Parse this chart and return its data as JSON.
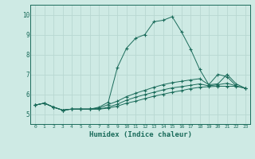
{
  "background_color": "#ceeae4",
  "grid_color": "#b8d8d2",
  "line_color": "#1a6b5a",
  "xlabel": "Humidex (Indice chaleur)",
  "x_ticks": [
    0,
    1,
    2,
    3,
    4,
    5,
    6,
    7,
    8,
    9,
    10,
    11,
    12,
    13,
    14,
    15,
    16,
    17,
    18,
    19,
    20,
    21,
    22,
    23
  ],
  "y_ticks": [
    5,
    6,
    7,
    8,
    9,
    10
  ],
  "xlim": [
    -0.5,
    23.5
  ],
  "ylim": [
    4.5,
    10.5
  ],
  "series": [
    [
      5.45,
      5.55,
      5.35,
      5.2,
      5.25,
      5.25,
      5.25,
      5.25,
      5.3,
      5.4,
      5.55,
      5.65,
      5.78,
      5.9,
      6.0,
      6.1,
      6.18,
      6.28,
      6.35,
      6.38,
      6.4,
      6.4,
      6.4,
      6.3
    ],
    [
      5.45,
      5.55,
      5.35,
      5.2,
      5.25,
      5.25,
      5.25,
      5.25,
      5.35,
      5.5,
      5.7,
      5.85,
      5.98,
      6.1,
      6.22,
      6.32,
      6.38,
      6.45,
      6.52,
      6.42,
      6.48,
      6.55,
      6.42,
      6.3
    ],
    [
      5.45,
      5.55,
      5.35,
      5.2,
      5.25,
      5.25,
      5.25,
      5.3,
      5.48,
      5.65,
      5.88,
      6.05,
      6.2,
      6.35,
      6.48,
      6.58,
      6.65,
      6.72,
      6.78,
      6.48,
      6.52,
      7.0,
      6.52,
      6.3
    ],
    [
      5.45,
      5.55,
      5.35,
      5.2,
      5.25,
      5.25,
      5.25,
      5.35,
      5.6,
      7.35,
      8.32,
      8.82,
      9.0,
      9.65,
      9.72,
      9.9,
      9.15,
      8.28,
      7.25,
      6.48,
      7.0,
      6.88,
      6.42,
      null
    ]
  ]
}
